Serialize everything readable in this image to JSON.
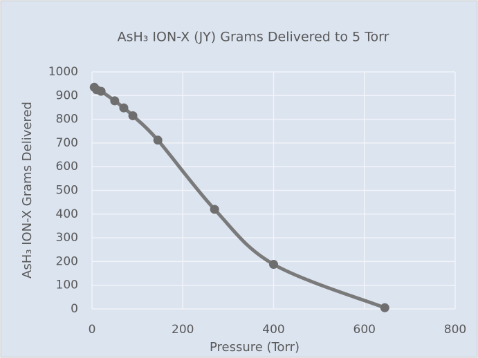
{
  "chart_data": {
    "type": "line",
    "title": "AsH₃ ION-X (JY) Grams Delivered to 5 Torr",
    "x_label": "Pressure (Torr)",
    "y_label": "AsH₃ ION-X Grams Delivered",
    "x": [
      5,
      10,
      20,
      50,
      70,
      90,
      145,
      270,
      400,
      645
    ],
    "series": [
      {
        "name": "AsH₃ ION-X (JY)",
        "color": "#7a7a7a",
        "values": [
          935,
          925,
          918,
          878,
          848,
          815,
          712,
          420,
          188,
          5
        ]
      }
    ],
    "xlim": [
      0,
      800
    ],
    "xticks": [
      0,
      200,
      400,
      600,
      800
    ],
    "ylim": [
      0,
      1000
    ],
    "yticks": [
      0,
      100,
      200,
      300,
      400,
      500,
      600,
      700,
      800,
      900,
      1000
    ],
    "grid": true,
    "smooth": true,
    "markers": true
  }
}
